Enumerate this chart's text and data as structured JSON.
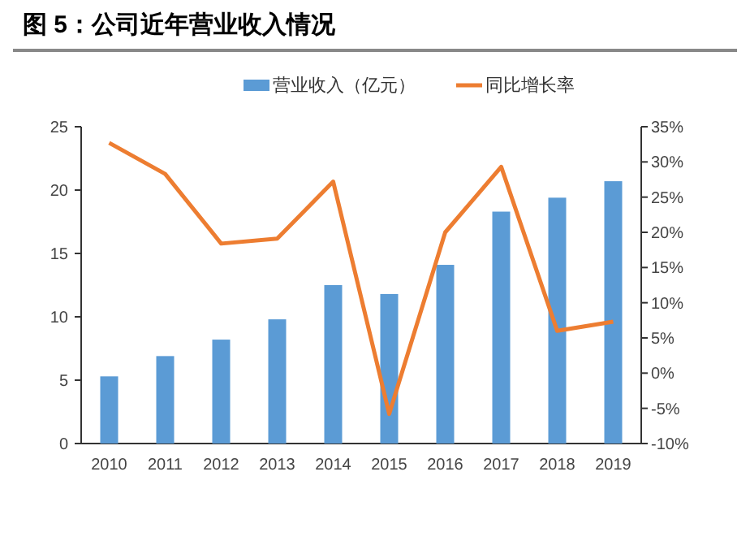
{
  "chart_data": {
    "type": "bar",
    "title": "图 5：公司近年营业收入情况",
    "categories": [
      "2010",
      "2011",
      "2012",
      "2013",
      "2014",
      "2015",
      "2016",
      "2017",
      "2018",
      "2019"
    ],
    "series": [
      {
        "name": "营业收入（亿元）",
        "color": "#5b9bd5",
        "values": [
          5.3,
          6.9,
          8.2,
          9.8,
          12.5,
          11.8,
          14.1,
          18.3,
          19.4,
          20.7
        ]
      },
      {
        "name": "同比增长率",
        "type": "line",
        "axis": "y2",
        "color": "#ed7d31",
        "values": [
          32.7,
          28.3,
          18.4,
          19.1,
          27.2,
          -5.8,
          20.0,
          29.3,
          6.0,
          7.3
        ]
      }
    ],
    "ylim": [
      0,
      25
    ],
    "yticks": [
      0,
      5,
      10,
      15,
      20,
      25
    ],
    "y2lim": [
      -10,
      35
    ],
    "y2ticks": [
      {
        "value": -10,
        "label": "-10%"
      },
      {
        "value": -5,
        "label": "-5%"
      },
      {
        "value": 0,
        "label": "0%"
      },
      {
        "value": 5,
        "label": "5%"
      },
      {
        "value": 10,
        "label": "10%"
      },
      {
        "value": 15,
        "label": "15%"
      },
      {
        "value": 20,
        "label": "20%"
      },
      {
        "value": 25,
        "label": "25%"
      },
      {
        "value": 30,
        "label": "30%"
      },
      {
        "value": 35,
        "label": "35%"
      }
    ],
    "grid": false,
    "legend": "top",
    "marker": "none"
  }
}
